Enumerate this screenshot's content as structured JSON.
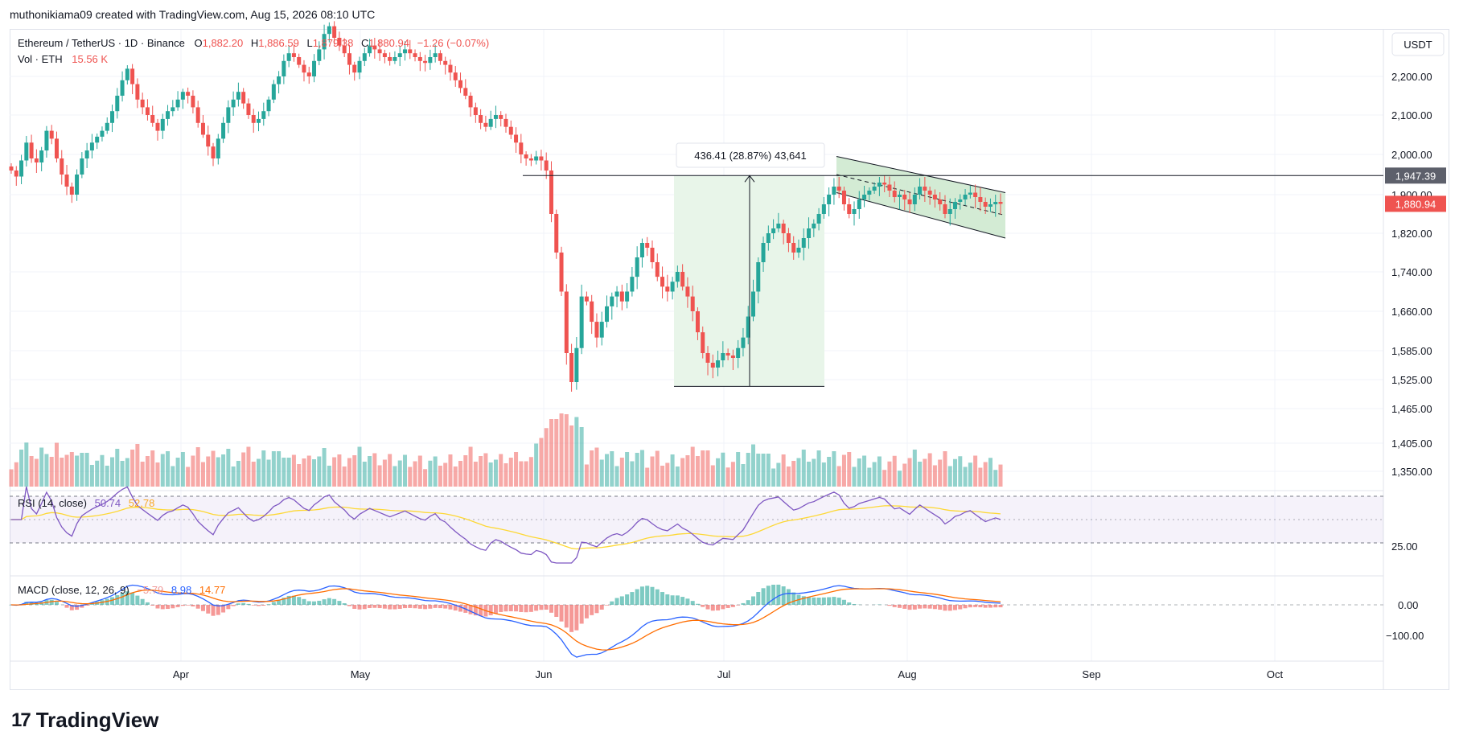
{
  "header": {
    "caption": "muthonikiama09 created with TradingView.com, Aug 15, 2026 08:10 UTC"
  },
  "legend": {
    "symbol": "Ethereum / TetherUS · 1D · Binance",
    "o_label": "O",
    "o_value": "1,882.20",
    "h_label": "H",
    "h_value": "1,886.59",
    "l_label": "L",
    "l_value": "1,879.38",
    "c_label": "C",
    "c_value": "1,880.94",
    "change": "−1.26 (−0.07%)",
    "vol_label": "Vol · ETH",
    "vol_value": "15.56 K"
  },
  "price_axis": {
    "unit": "USDT",
    "ticks": [
      "2,200.00",
      "2,100.00",
      "2,000.00",
      "1,900.00",
      "1,820.00",
      "1,740.00",
      "1,660.00",
      "1,585.00",
      "1,525.00",
      "1,465.00",
      "1,405.00",
      "1,350.00"
    ],
    "tick_values": [
      2200,
      2100,
      2000,
      1900,
      1820,
      1740,
      1660,
      1585,
      1525,
      1465,
      1405,
      1350
    ],
    "badge_high": "1,947.39",
    "badge_last": "1,880.94"
  },
  "time_axis": {
    "labels": [
      "Apr",
      "May",
      "Jun",
      "Jul",
      "Aug",
      "Sep",
      "Oct"
    ]
  },
  "measure": {
    "text": "436.41 (28.87%) 43,641",
    "low": 1511,
    "high": 1947.39
  },
  "rsi": {
    "title": "RSI (14, close)",
    "value": "50.74",
    "ma": "52.78",
    "tick": "25.00"
  },
  "macd": {
    "title": "MACD (close, 12, 26, 9)",
    "hist": "−5.79",
    "macd": "8.98",
    "signal": "14.77",
    "ticks": [
      "0.00",
      "−100.00"
    ]
  },
  "brand": {
    "name": "TradingView",
    "logo": "17"
  },
  "colors": {
    "up": "#26a69a",
    "down": "#ef5350",
    "rsi": "#7e57c2",
    "rsi_ma": "#fdd835",
    "macd": "#2962ff",
    "signal": "#ff6d00",
    "channel": "#c8e6c9",
    "measure": "#e8f5e9"
  },
  "chart_data": {
    "type": "candlestick",
    "title": "Ethereum / TetherUS · 1D · Binance",
    "x_start": "Mar 05",
    "x_end": "Aug 15",
    "channel": {
      "upper": [
        1995,
        1905
      ],
      "lower": [
        1905,
        1810
      ],
      "x": [
        "Jul 19",
        "Aug 16"
      ]
    },
    "closes": [
      1960,
      1945,
      1985,
      2030,
      1990,
      1980,
      2010,
      2060,
      2040,
      1990,
      1950,
      1920,
      1900,
      1950,
      1990,
      2010,
      2030,
      2045,
      2060,
      2080,
      2110,
      2150,
      2190,
      2220,
      2180,
      2140,
      2120,
      2100,
      2080,
      2060,
      2090,
      2110,
      2120,
      2140,
      2160,
      2150,
      2120,
      2080,
      2050,
      2020,
      1990,
      2040,
      2080,
      2120,
      2140,
      2160,
      2130,
      2100,
      2080,
      2090,
      2110,
      2140,
      2180,
      2200,
      2240,
      2260,
      2250,
      2230,
      2210,
      2200,
      2240,
      2270,
      2310,
      2330,
      2300,
      2280,
      2260,
      2230,
      2210,
      2240,
      2260,
      2280,
      2270,
      2260,
      2250,
      2240,
      2250,
      2260,
      2270,
      2260,
      2250,
      2240,
      2235,
      2250,
      2260,
      2240,
      2230,
      2210,
      2190,
      2170,
      2150,
      2120,
      2100,
      2080,
      2070,
      2090,
      2100,
      2090,
      2070,
      2050,
      2030,
      2000,
      1990,
      1985,
      1995,
      1985,
      1960,
      1860,
      1780,
      1700,
      1580,
      1520,
      1590,
      1690,
      1680,
      1640,
      1610,
      1640,
      1670,
      1690,
      1700,
      1680,
      1700,
      1730,
      1770,
      1800,
      1790,
      1760,
      1730,
      1710,
      1700,
      1720,
      1740,
      1710,
      1690,
      1660,
      1620,
      1580,
      1560,
      1550,
      1565,
      1580,
      1575,
      1570,
      1590,
      1610,
      1650,
      1700,
      1760,
      1800,
      1820,
      1830,
      1840,
      1820,
      1800,
      1780,
      1790,
      1810,
      1830,
      1840,
      1860,
      1880,
      1900,
      1920,
      1910,
      1880,
      1860,
      1870,
      1890,
      1900,
      1910,
      1920,
      1930,
      1925,
      1910,
      1895,
      1900,
      1890,
      1880,
      1900,
      1920,
      1910,
      1900,
      1890,
      1880,
      1860,
      1870,
      1885,
      1890,
      1900,
      1905,
      1895,
      1885,
      1875,
      1880,
      1885,
      1880.94
    ]
  }
}
